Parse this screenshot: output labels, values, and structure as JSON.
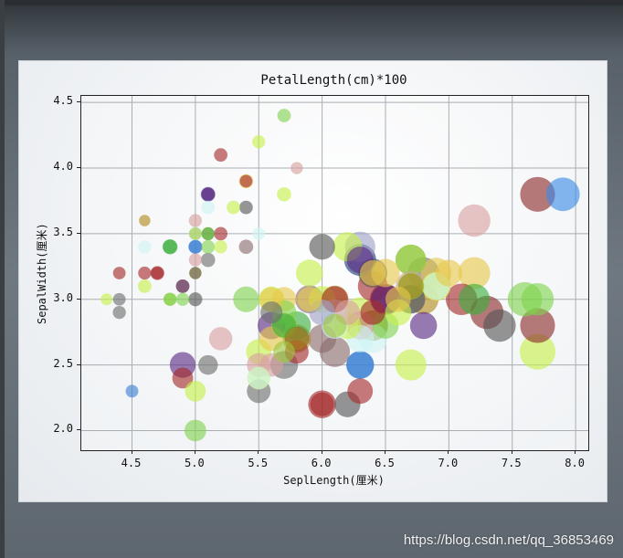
{
  "watermark": "https://blog.csdn.net/qq_36853469",
  "chart_data": {
    "type": "scatter",
    "title": "PetalLength(cm)*100",
    "xlabel": "SeplLength(厘米)",
    "ylabel": "SepalWidth(厘米)",
    "xlim": [
      4.1,
      8.1
    ],
    "ylim": [
      1.85,
      4.55
    ],
    "xticks": [
      4.5,
      5.0,
      5.5,
      6.0,
      6.5,
      7.0,
      7.5,
      8.0
    ],
    "xtick_labels": [
      "4.5",
      "5.0",
      "5.5",
      "6.0",
      "6.5",
      "7.0",
      "7.5",
      "8.0"
    ],
    "yticks": [
      2.0,
      2.5,
      3.0,
      3.5,
      4.0,
      4.5
    ],
    "ytick_labels": [
      "2.0",
      "2.5",
      "3.0",
      "3.5",
      "4.0",
      "4.5"
    ],
    "grid": true,
    "size_encoding": "petal length (cm) x 100",
    "points": [
      {
        "x": 5.1,
        "y": 3.5,
        "size": 1.4,
        "color": "#d4b04a"
      },
      {
        "x": 4.9,
        "y": 3.0,
        "size": 1.4,
        "color": "#7fd34e"
      },
      {
        "x": 4.7,
        "y": 3.2,
        "size": 1.3,
        "color": "#a52a2a"
      },
      {
        "x": 4.6,
        "y": 3.1,
        "size": 1.5,
        "color": "#c6f04a"
      },
      {
        "x": 5.0,
        "y": 3.6,
        "size": 1.4,
        "color": "#d9a0a0"
      },
      {
        "x": 5.4,
        "y": 3.9,
        "size": 1.7,
        "color": "#e6c84a"
      },
      {
        "x": 4.6,
        "y": 3.4,
        "size": 1.4,
        "color": "#cff4f4"
      },
      {
        "x": 5.0,
        "y": 3.4,
        "size": 1.5,
        "color": "#3a7fd4"
      },
      {
        "x": 4.4,
        "y": 2.9,
        "size": 1.4,
        "color": "#6e6e6e"
      },
      {
        "x": 4.9,
        "y": 3.1,
        "size": 1.5,
        "color": "#b08a1a"
      },
      {
        "x": 5.4,
        "y": 3.7,
        "size": 1.5,
        "color": "#555555"
      },
      {
        "x": 4.8,
        "y": 3.4,
        "size": 1.6,
        "color": "#3cae3c"
      },
      {
        "x": 4.8,
        "y": 3.0,
        "size": 1.4,
        "color": "#a0c83c"
      },
      {
        "x": 4.3,
        "y": 3.0,
        "size": 1.1,
        "color": "#c6f04a"
      },
      {
        "x": 5.8,
        "y": 4.0,
        "size": 1.2,
        "color": "#d9a0a0"
      },
      {
        "x": 5.7,
        "y": 4.4,
        "size": 1.5,
        "color": "#7fd34e"
      },
      {
        "x": 5.4,
        "y": 3.9,
        "size": 1.3,
        "color": "#a52a2a"
      },
      {
        "x": 5.1,
        "y": 3.5,
        "size": 1.4,
        "color": "#3cae3c"
      },
      {
        "x": 5.7,
        "y": 3.8,
        "size": 1.7,
        "color": "#c6f04a"
      },
      {
        "x": 5.1,
        "y": 3.8,
        "size": 1.5,
        "color": "#5a2a82"
      },
      {
        "x": 5.4,
        "y": 3.4,
        "size": 1.7,
        "color": "#8a6a6a"
      },
      {
        "x": 5.1,
        "y": 3.7,
        "size": 1.5,
        "color": "#cff4f4"
      },
      {
        "x": 4.6,
        "y": 3.6,
        "size": 1.0,
        "color": "#b08a1a"
      },
      {
        "x": 5.1,
        "y": 3.3,
        "size": 1.7,
        "color": "#6e6e6e"
      },
      {
        "x": 4.8,
        "y": 3.4,
        "size": 1.9,
        "color": "#3cae3c"
      },
      {
        "x": 5.0,
        "y": 3.0,
        "size": 1.6,
        "color": "#555555"
      },
      {
        "x": 5.0,
        "y": 3.4,
        "size": 1.6,
        "color": "#3a7fd4"
      },
      {
        "x": 5.2,
        "y": 3.5,
        "size": 1.5,
        "color": "#a52a2a"
      },
      {
        "x": 5.2,
        "y": 3.4,
        "size": 1.4,
        "color": "#c6f04a"
      },
      {
        "x": 4.7,
        "y": 3.2,
        "size": 1.6,
        "color": "#a52a2a"
      },
      {
        "x": 5.0,
        "y": 3.2,
        "size": 1.2,
        "color": "#e6c84a"
      },
      {
        "x": 5.2,
        "y": 4.1,
        "size": 1.5,
        "color": "#a52a2a"
      },
      {
        "x": 5.5,
        "y": 4.2,
        "size": 1.4,
        "color": "#c6f04a"
      },
      {
        "x": 4.9,
        "y": 3.1,
        "size": 1.5,
        "color": "#5a2a82"
      },
      {
        "x": 5.0,
        "y": 3.2,
        "size": 1.2,
        "color": "#555555"
      },
      {
        "x": 5.5,
        "y": 3.5,
        "size": 1.3,
        "color": "#cff4f4"
      },
      {
        "x": 4.4,
        "y": 3.0,
        "size": 1.3,
        "color": "#6e6e6e"
      },
      {
        "x": 5.1,
        "y": 3.4,
        "size": 1.5,
        "color": "#7fd34e"
      },
      {
        "x": 5.0,
        "y": 3.5,
        "size": 1.3,
        "color": "#a0c83c"
      },
      {
        "x": 4.5,
        "y": 2.3,
        "size": 1.3,
        "color": "#3a7fd4"
      },
      {
        "x": 4.4,
        "y": 3.2,
        "size": 1.3,
        "color": "#a52a2a"
      },
      {
        "x": 5.0,
        "y": 3.5,
        "size": 1.6,
        "color": "#cff4f4"
      },
      {
        "x": 5.1,
        "y": 3.8,
        "size": 1.9,
        "color": "#a0a0c8"
      },
      {
        "x": 4.8,
        "y": 3.0,
        "size": 1.4,
        "color": "#7fd34e"
      },
      {
        "x": 5.1,
        "y": 3.8,
        "size": 1.6,
        "color": "#5a2a82"
      },
      {
        "x": 4.6,
        "y": 3.2,
        "size": 1.4,
        "color": "#a52a2a"
      },
      {
        "x": 5.3,
        "y": 3.7,
        "size": 1.5,
        "color": "#c6f04a"
      },
      {
        "x": 5.0,
        "y": 3.3,
        "size": 1.4,
        "color": "#d9a0a0"
      },
      {
        "x": 7.0,
        "y": 3.2,
        "size": 4.7,
        "color": "#e6c84a"
      },
      {
        "x": 6.4,
        "y": 3.2,
        "size": 4.5,
        "color": "#e6c84a"
      },
      {
        "x": 6.9,
        "y": 3.1,
        "size": 4.9,
        "color": "#cff4f4"
      },
      {
        "x": 5.5,
        "y": 2.3,
        "size": 4.0,
        "color": "#6e6e6e"
      },
      {
        "x": 6.5,
        "y": 2.8,
        "size": 4.6,
        "color": "#7fd34e"
      },
      {
        "x": 5.7,
        "y": 2.8,
        "size": 4.5,
        "color": "#a0c83c"
      },
      {
        "x": 6.3,
        "y": 3.3,
        "size": 4.7,
        "color": "#5a2a82"
      },
      {
        "x": 4.9,
        "y": 2.4,
        "size": 3.3,
        "color": "#a52a2a"
      },
      {
        "x": 6.6,
        "y": 2.9,
        "size": 4.6,
        "color": "#c6f04a"
      },
      {
        "x": 5.2,
        "y": 2.7,
        "size": 3.9,
        "color": "#d9a0a0"
      },
      {
        "x": 5.0,
        "y": 2.0,
        "size": 3.5,
        "color": "#7fd34e"
      },
      {
        "x": 5.9,
        "y": 3.0,
        "size": 4.2,
        "color": "#e6c84a"
      },
      {
        "x": 6.0,
        "y": 2.2,
        "size": 4.0,
        "color": "#a52a2a"
      },
      {
        "x": 6.1,
        "y": 2.9,
        "size": 4.7,
        "color": "#cff4f4"
      },
      {
        "x": 5.6,
        "y": 2.9,
        "size": 3.6,
        "color": "#6e6e6e"
      },
      {
        "x": 6.7,
        "y": 3.1,
        "size": 4.4,
        "color": "#b08a1a"
      },
      {
        "x": 5.6,
        "y": 3.0,
        "size": 4.5,
        "color": "#c6f04a"
      },
      {
        "x": 5.8,
        "y": 2.7,
        "size": 4.1,
        "color": "#555555"
      },
      {
        "x": 6.2,
        "y": 2.2,
        "size": 4.5,
        "color": "#555555"
      },
      {
        "x": 5.6,
        "y": 2.5,
        "size": 3.9,
        "color": "#d9a0a0"
      },
      {
        "x": 5.9,
        "y": 3.2,
        "size": 4.8,
        "color": "#c6f04a"
      },
      {
        "x": 6.1,
        "y": 2.8,
        "size": 4.0,
        "color": "#a0c83c"
      },
      {
        "x": 6.3,
        "y": 2.5,
        "size": 4.9,
        "color": "#3a7fd4"
      },
      {
        "x": 6.1,
        "y": 2.8,
        "size": 4.7,
        "color": "#cff4f4"
      },
      {
        "x": 6.4,
        "y": 2.9,
        "size": 4.3,
        "color": "#a52a2a"
      },
      {
        "x": 6.6,
        "y": 3.0,
        "size": 4.4,
        "color": "#e6c84a"
      },
      {
        "x": 6.8,
        "y": 2.8,
        "size": 4.8,
        "color": "#5a2a82"
      },
      {
        "x": 6.7,
        "y": 3.0,
        "size": 5.0,
        "color": "#6e6e6e"
      },
      {
        "x": 6.0,
        "y": 2.9,
        "size": 4.5,
        "color": "#a0a0c8"
      },
      {
        "x": 5.7,
        "y": 2.6,
        "size": 3.5,
        "color": "#a0c83c"
      },
      {
        "x": 5.5,
        "y": 2.4,
        "size": 3.8,
        "color": "#c6f04a"
      },
      {
        "x": 5.5,
        "y": 2.4,
        "size": 3.7,
        "color": "#cff4f4"
      },
      {
        "x": 5.8,
        "y": 2.7,
        "size": 3.9,
        "color": "#b08a1a"
      },
      {
        "x": 6.0,
        "y": 2.7,
        "size": 5.1,
        "color": "#8a6a6a"
      },
      {
        "x": 5.4,
        "y": 3.0,
        "size": 4.5,
        "color": "#7fd34e"
      },
      {
        "x": 6.0,
        "y": 3.4,
        "size": 4.5,
        "color": "#555555"
      },
      {
        "x": 6.7,
        "y": 3.1,
        "size": 4.7,
        "color": "#7fd34e"
      },
      {
        "x": 6.3,
        "y": 2.3,
        "size": 4.4,
        "color": "#a52a2a"
      },
      {
        "x": 5.6,
        "y": 3.0,
        "size": 4.1,
        "color": "#e6c84a"
      },
      {
        "x": 5.5,
        "y": 2.5,
        "size": 4.0,
        "color": "#d9a0a0"
      },
      {
        "x": 5.5,
        "y": 2.6,
        "size": 4.4,
        "color": "#c6f04a"
      },
      {
        "x": 6.1,
        "y": 3.0,
        "size": 4.6,
        "color": "#a52a2a"
      },
      {
        "x": 5.8,
        "y": 2.6,
        "size": 4.0,
        "color": "#a52a2a"
      },
      {
        "x": 5.0,
        "y": 2.3,
        "size": 3.3,
        "color": "#c6f04a"
      },
      {
        "x": 5.6,
        "y": 2.7,
        "size": 4.2,
        "color": "#e6c84a"
      },
      {
        "x": 5.7,
        "y": 3.0,
        "size": 4.2,
        "color": "#e6c84a"
      },
      {
        "x": 5.7,
        "y": 2.9,
        "size": 4.2,
        "color": "#7fd34e"
      },
      {
        "x": 6.2,
        "y": 2.9,
        "size": 4.3,
        "color": "#d9a0a0"
      },
      {
        "x": 5.1,
        "y": 2.5,
        "size": 3.0,
        "color": "#6e6e6e"
      },
      {
        "x": 5.7,
        "y": 2.8,
        "size": 4.1,
        "color": "#3cae3c"
      },
      {
        "x": 6.3,
        "y": 3.3,
        "size": 6.0,
        "color": "#1e3a78"
      },
      {
        "x": 5.8,
        "y": 2.7,
        "size": 5.1,
        "color": "#b08a1a"
      },
      {
        "x": 7.1,
        "y": 3.0,
        "size": 5.9,
        "color": "#a52a2a"
      },
      {
        "x": 6.3,
        "y": 2.9,
        "size": 5.6,
        "color": "#c6f04a"
      },
      {
        "x": 6.5,
        "y": 3.0,
        "size": 5.8,
        "color": "#5a2a82"
      },
      {
        "x": 7.6,
        "y": 3.0,
        "size": 6.6,
        "color": "#7fd34e"
      },
      {
        "x": 4.9,
        "y": 2.5,
        "size": 4.5,
        "color": "#5a2a82"
      },
      {
        "x": 7.3,
        "y": 2.9,
        "size": 6.3,
        "color": "#8a2a2a"
      },
      {
        "x": 6.7,
        "y": 2.5,
        "size": 5.8,
        "color": "#c6f04a"
      },
      {
        "x": 7.2,
        "y": 3.6,
        "size": 6.1,
        "color": "#d9a0a0"
      },
      {
        "x": 6.5,
        "y": 3.2,
        "size": 5.1,
        "color": "#e6c84a"
      },
      {
        "x": 6.4,
        "y": 2.7,
        "size": 5.3,
        "color": "#cff4f4"
      },
      {
        "x": 6.8,
        "y": 3.0,
        "size": 5.5,
        "color": "#b08a1a"
      },
      {
        "x": 5.7,
        "y": 2.5,
        "size": 5.0,
        "color": "#6e6e6e"
      },
      {
        "x": 5.8,
        "y": 2.8,
        "size": 5.1,
        "color": "#3cae3c"
      },
      {
        "x": 6.4,
        "y": 3.2,
        "size": 5.3,
        "color": "#555555"
      },
      {
        "x": 6.5,
        "y": 3.0,
        "size": 5.5,
        "color": "#a52a2a"
      },
      {
        "x": 7.7,
        "y": 3.8,
        "size": 6.7,
        "color": "#8a2a2a"
      },
      {
        "x": 7.7,
        "y": 2.6,
        "size": 6.9,
        "color": "#c6f04a"
      },
      {
        "x": 6.0,
        "y": 2.2,
        "size": 5.0,
        "color": "#a52a2a"
      },
      {
        "x": 6.9,
        "y": 3.2,
        "size": 5.7,
        "color": "#e6c84a"
      },
      {
        "x": 5.6,
        "y": 2.8,
        "size": 4.9,
        "color": "#5a2a82"
      },
      {
        "x": 7.7,
        "y": 2.8,
        "size": 6.7,
        "color": "#8a2a2a"
      },
      {
        "x": 6.3,
        "y": 2.7,
        "size": 4.9,
        "color": "#cff4f4"
      },
      {
        "x": 6.7,
        "y": 3.3,
        "size": 5.7,
        "color": "#7fd34e"
      },
      {
        "x": 7.2,
        "y": 3.2,
        "size": 6.0,
        "color": "#e6c84a"
      },
      {
        "x": 6.2,
        "y": 2.8,
        "size": 4.8,
        "color": "#c6f04a"
      },
      {
        "x": 6.1,
        "y": 3.0,
        "size": 4.9,
        "color": "#b08a1a"
      },
      {
        "x": 6.4,
        "y": 2.8,
        "size": 5.6,
        "color": "#8a2a2a"
      },
      {
        "x": 7.2,
        "y": 3.0,
        "size": 5.8,
        "color": "#3cae3c"
      },
      {
        "x": 7.4,
        "y": 2.8,
        "size": 6.1,
        "color": "#555555"
      },
      {
        "x": 7.9,
        "y": 3.8,
        "size": 6.4,
        "color": "#3a8ae6"
      },
      {
        "x": 6.4,
        "y": 2.8,
        "size": 5.6,
        "color": "#a0c83c"
      },
      {
        "x": 6.3,
        "y": 2.8,
        "size": 5.1,
        "color": "#d9a0a0"
      },
      {
        "x": 6.1,
        "y": 2.6,
        "size": 5.6,
        "color": "#8a6a6a"
      },
      {
        "x": 7.7,
        "y": 3.0,
        "size": 6.1,
        "color": "#7fd34e"
      },
      {
        "x": 6.3,
        "y": 3.4,
        "size": 5.6,
        "color": "#a0a0c8"
      },
      {
        "x": 6.4,
        "y": 3.1,
        "size": 5.5,
        "color": "#a52a2a"
      },
      {
        "x": 6.0,
        "y": 3.0,
        "size": 4.8,
        "color": "#c6f04a"
      },
      {
        "x": 6.9,
        "y": 3.1,
        "size": 5.4,
        "color": "#e6c84a"
      },
      {
        "x": 6.7,
        "y": 3.1,
        "size": 5.6,
        "color": "#d9a0a0"
      },
      {
        "x": 6.9,
        "y": 3.1,
        "size": 5.1,
        "color": "#c6f04a"
      },
      {
        "x": 6.8,
        "y": 3.2,
        "size": 5.9,
        "color": "#6e6e6e"
      },
      {
        "x": 6.7,
        "y": 3.3,
        "size": 5.7,
        "color": "#a0c83c"
      },
      {
        "x": 6.7,
        "y": 3.0,
        "size": 5.2,
        "color": "#555555"
      },
      {
        "x": 6.3,
        "y": 2.5,
        "size": 5.0,
        "color": "#3a7fd4"
      },
      {
        "x": 6.5,
        "y": 3.0,
        "size": 5.2,
        "color": "#5a2a82"
      },
      {
        "x": 6.2,
        "y": 3.4,
        "size": 5.4,
        "color": "#c6f04a"
      },
      {
        "x": 5.9,
        "y": 3.0,
        "size": 5.1,
        "color": "#8a6a6a"
      }
    ]
  }
}
